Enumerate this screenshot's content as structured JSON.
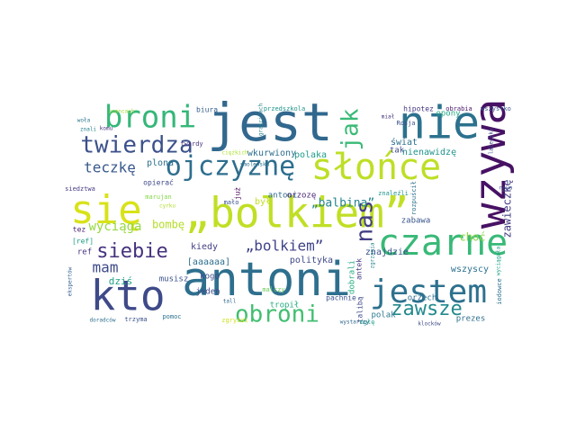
{
  "chart_data": {
    "type": "wordcloud",
    "background_color": "#ffffff",
    "colormap": "viridis",
    "words": [
      {
        "text": "jest",
        "color": "#31688e"
      },
      {
        "text": "nie",
        "color": "#2c718e"
      },
      {
        "text": "wzywa",
        "color": "#471164"
      },
      {
        "text": "broni",
        "color": "#35b779"
      },
      {
        "text": "słońce",
        "color": "#bddf26"
      },
      {
        "text": "ojczyznę",
        "color": "#2e6e8e"
      },
      {
        "text": "twierdza",
        "color": "#3b518b"
      },
      {
        "text": "jak",
        "color": "#3aba76"
      },
      {
        "text": "się",
        "color": "#d8e219"
      },
      {
        "text": "„bolkiem”",
        "color": "#c0df25"
      },
      {
        "text": "czarne",
        "color": "#38b977"
      },
      {
        "text": "nas",
        "color": "#433e85"
      },
      {
        "text": "antoni",
        "color": "#2e6f8e"
      },
      {
        "text": "kto",
        "color": "#3e4a89"
      },
      {
        "text": "jestem",
        "color": "#2d718e"
      },
      {
        "text": "obroni",
        "color": "#42be71"
      },
      {
        "text": "zawsze",
        "color": "#238a8d"
      },
      {
        "text": "siebie",
        "color": "#46327e"
      },
      {
        "text": "teczkę",
        "color": "#38588c"
      },
      {
        "text": "zawieczkę",
        "color": "#433e85"
      },
      {
        "text": "mam",
        "color": "#3e4a89"
      },
      {
        "text": "„bolkiem”",
        "color": "#404387"
      },
      {
        "text": "wyciąga",
        "color": "#95d840"
      },
      {
        "text": "bombę",
        "color": "#b5de2b"
      },
      {
        "text": "„balbina”",
        "color": "#25848e"
      },
      {
        "text": "polityka",
        "color": "#3e4a89"
      },
      {
        "text": "kiedy",
        "color": "#433e85"
      },
      {
        "text": "[aaaaaa]",
        "color": "#2d708e"
      },
      {
        "text": "musisz",
        "color": "#3b528b"
      },
      {
        "text": "dziś",
        "color": "#20a386"
      },
      {
        "text": "ref",
        "color": "#46327e"
      },
      {
        "text": "[ref]",
        "color": "#1fa187"
      },
      {
        "text": "tez",
        "color": "#482475"
      },
      {
        "text": "plona",
        "color": "#2d708e"
      },
      {
        "text": "wkurwiony",
        "color": "#2e6e8e"
      },
      {
        "text": "nienawidzę",
        "color": "#1f948c"
      },
      {
        "text": "polaka",
        "color": "#1e9b8a"
      },
      {
        "text": "tak",
        "color": "#3f4889"
      },
      {
        "text": "świat",
        "color": "#2c728e"
      },
      {
        "text": "opony",
        "color": "#22a785"
      },
      {
        "text": "hipotez",
        "color": "#453882"
      },
      {
        "text": "obrabia",
        "color": "#481769"
      },
      {
        "text": "wszystko",
        "color": "#3b528b"
      },
      {
        "text": "przedszkola",
        "color": "#1f948c"
      },
      {
        "text": "biura",
        "color": "#355f8d"
      },
      {
        "text": "znancach",
        "color": "#9fda3a"
      },
      {
        "text": "woła",
        "color": "#2a788e"
      },
      {
        "text": "znali",
        "color": "#26828e"
      },
      {
        "text": "komu",
        "color": "#46327e"
      },
      {
        "text": "twardy",
        "color": "#46337f"
      },
      {
        "text": "opierać",
        "color": "#3e4989"
      },
      {
        "text": "siedztwa",
        "color": "#443a83"
      },
      {
        "text": "smolensku",
        "color": "#2c728e"
      },
      {
        "text": "marujan",
        "color": "#86d549"
      },
      {
        "text": "cyrku",
        "color": "#b0dd2f"
      },
      {
        "text": "był",
        "color": "#c2df23"
      },
      {
        "text": "już",
        "color": "#440154"
      },
      {
        "text": "mało",
        "color": "#3b528b"
      },
      {
        "text": "antoni",
        "color": "#2e6e8e"
      },
      {
        "text": "orzozę",
        "color": "#482878"
      },
      {
        "text": "znajdzie",
        "color": "#3b518b"
      },
      {
        "text": "wszyscy",
        "color": "#2d718e"
      },
      {
        "text": "choć",
        "color": "#8bd646"
      },
      {
        "text": "zabawa",
        "color": "#39568c"
      },
      {
        "text": "antek",
        "color": "#453882"
      },
      {
        "text": "malczy",
        "color": "#6ccd5a"
      },
      {
        "text": "tropił",
        "color": "#25ac82"
      },
      {
        "text": "kogo",
        "color": "#3e4a89"
      },
      {
        "text": "jeden",
        "color": "#3e4989"
      },
      {
        "text": "pomoc",
        "color": "#2c728e"
      },
      {
        "text": "trzyma",
        "color": "#3b528b"
      },
      {
        "text": "doradców",
        "color": "#2c718e"
      },
      {
        "text": "ekspertów",
        "color": "#34618d"
      },
      {
        "text": "zgryzai",
        "color": "#cde11d"
      },
      {
        "text": "tall",
        "color": "#31688e"
      },
      {
        "text": "pachnie",
        "color": "#3b528b"
      },
      {
        "text": "talibą",
        "color": "#3e4a89"
      },
      {
        "text": "dobrali",
        "color": "#25ac82"
      },
      {
        "text": "mgłę",
        "color": "#1f9e89"
      },
      {
        "text": "polak",
        "color": "#2a788e"
      },
      {
        "text": "prezes",
        "color": "#2e6e8e"
      },
      {
        "text": "klocków",
        "color": "#3e4a89"
      },
      {
        "text": "iodowce",
        "color": "#2c718e"
      },
      {
        "text": "wystarczy",
        "color": "#31688e"
      },
      {
        "text": "orzech",
        "color": "#2e6e8e"
      },
      {
        "text": "Rosja",
        "color": "#3b528b"
      },
      {
        "text": "miał",
        "color": "#46327e"
      },
      {
        "text": "laleczka",
        "color": "#3e4989"
      },
      {
        "text": "zgrzania",
        "color": "#26828e"
      },
      {
        "text": "nowa",
        "color": "#3b528b"
      },
      {
        "text": "rozpuścił",
        "color": "#2c728e"
      },
      {
        "text": "znaleźli",
        "color": "#1f948c"
      },
      {
        "text": "graścicach",
        "color": "#25848e"
      },
      {
        "text": "ciężkich",
        "color": "#ade02e"
      },
      {
        "text": "wyciągała",
        "color": "#1fa187"
      }
    ]
  }
}
